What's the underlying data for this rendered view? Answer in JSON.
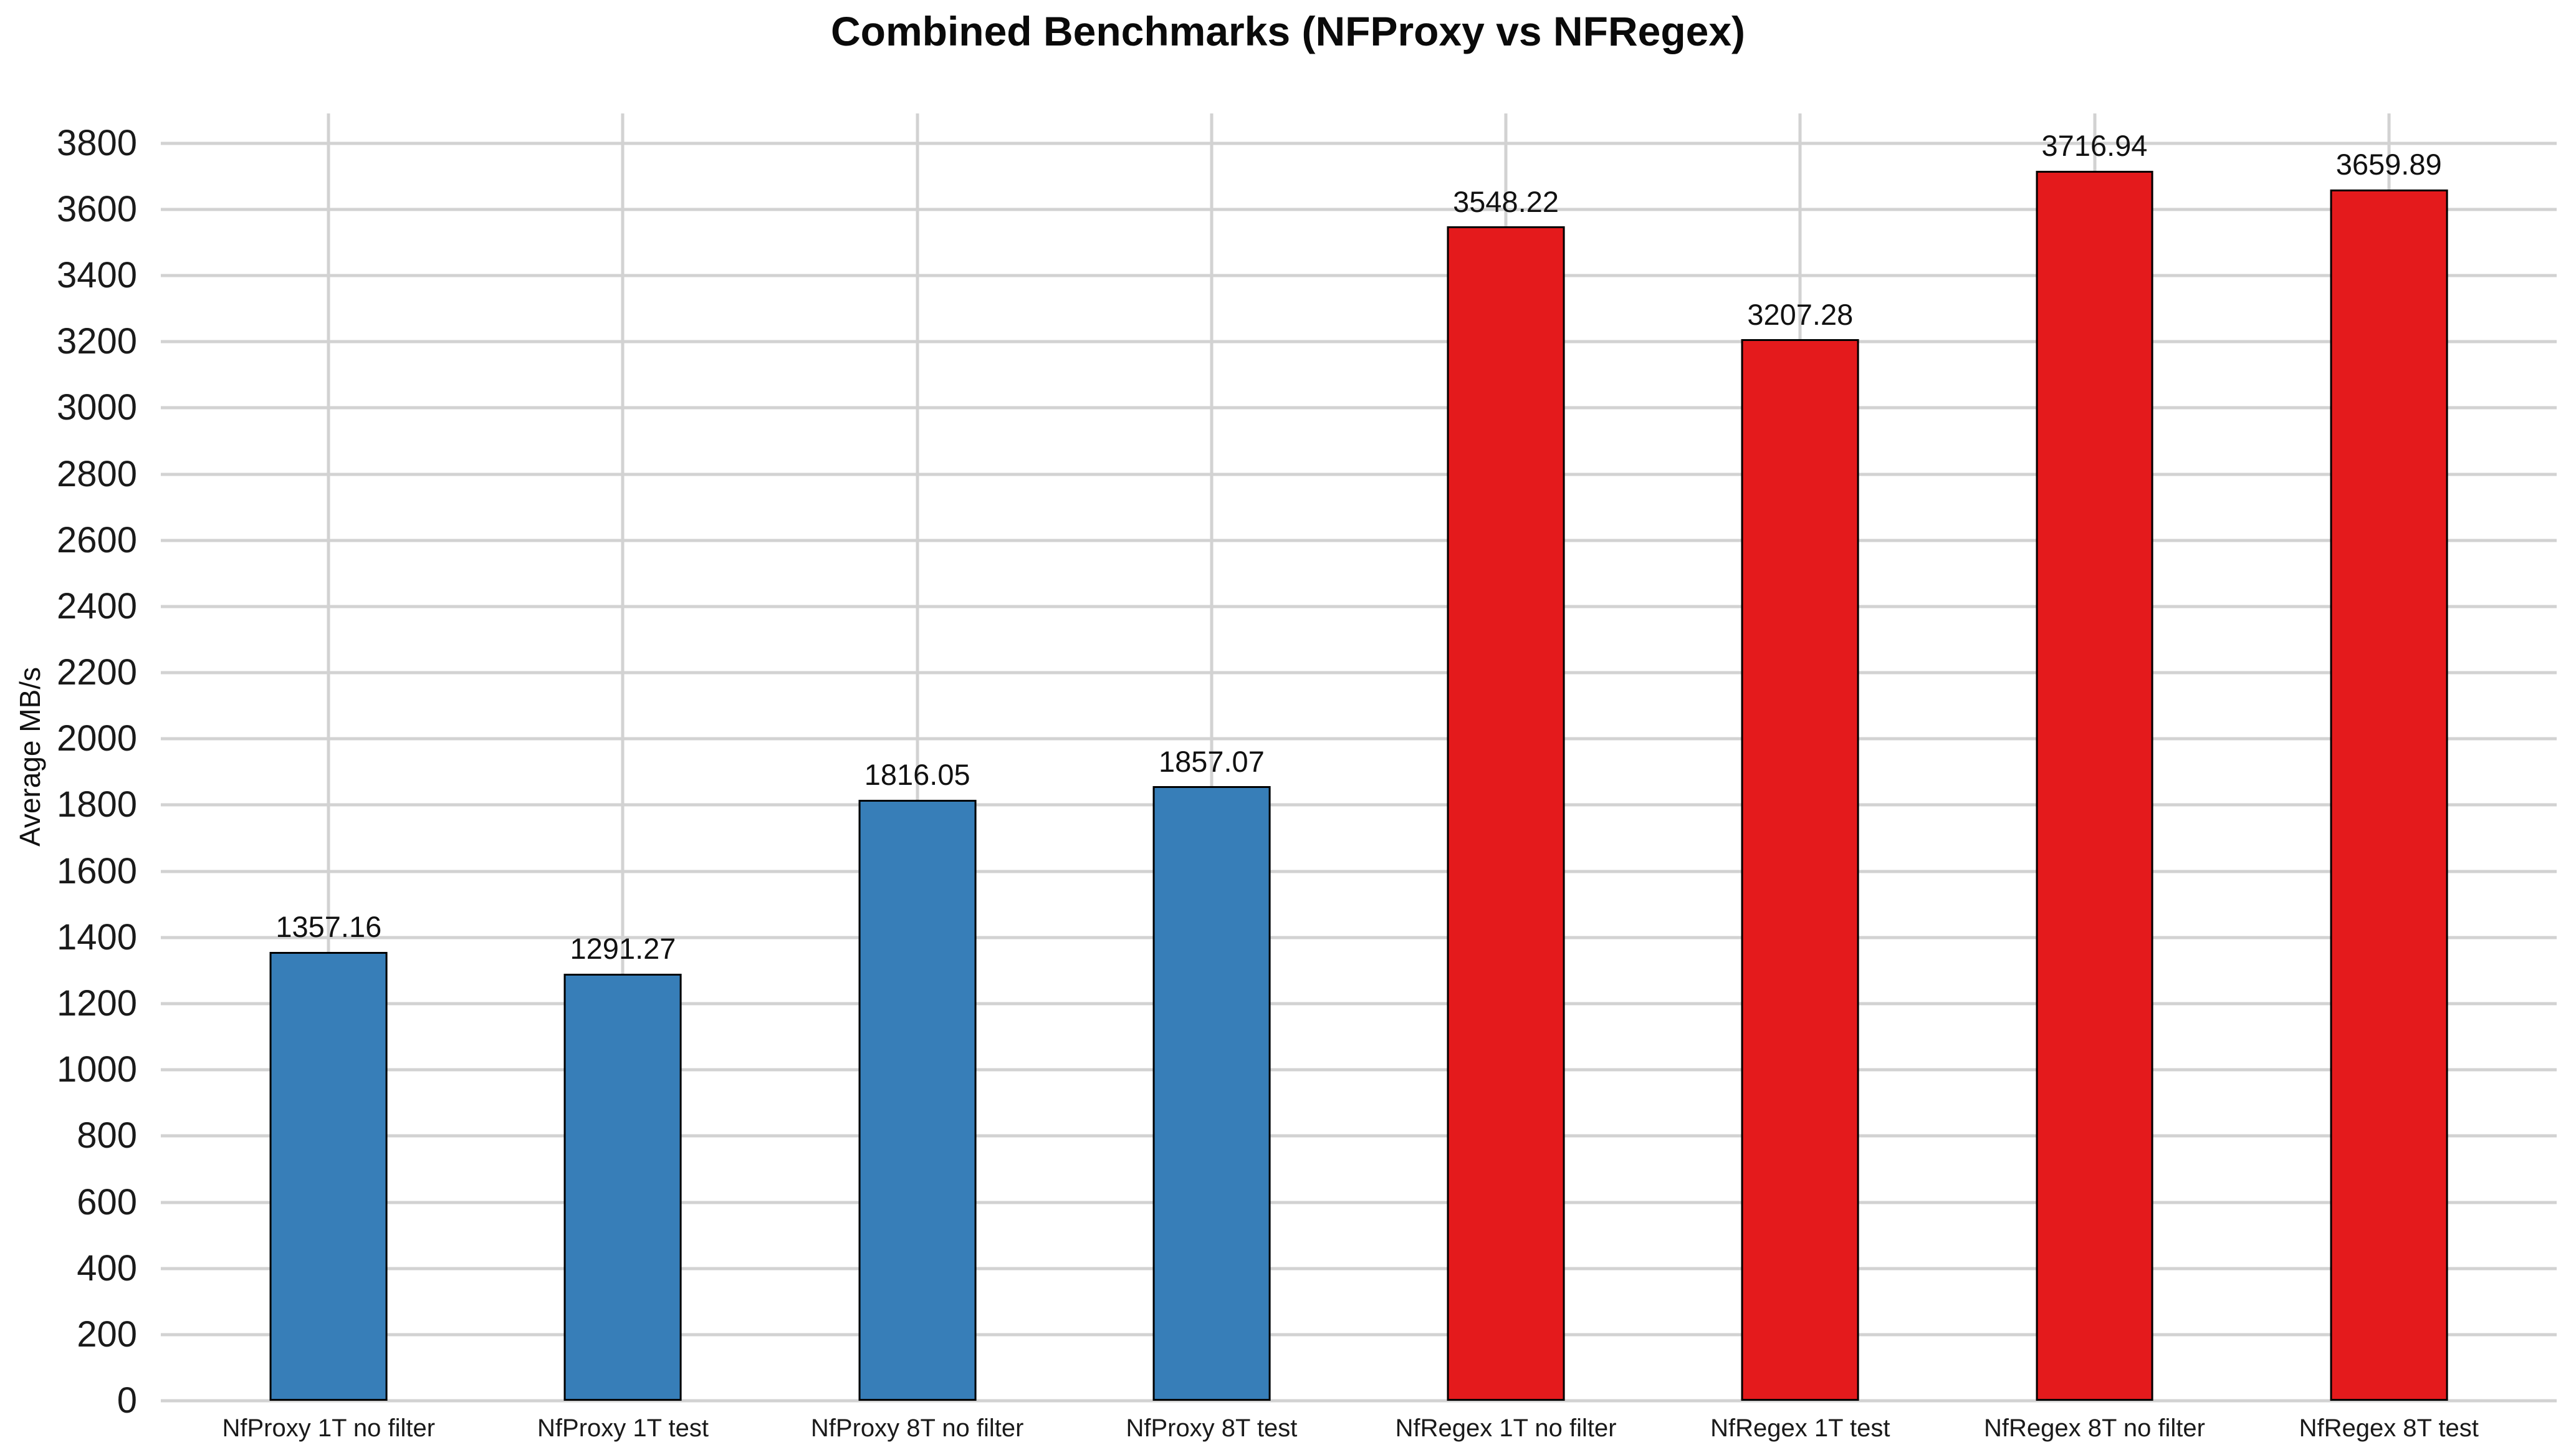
{
  "page": {
    "title": "Combined Benchmarks (NFProxy vs NFRegex)"
  },
  "chart_data": {
    "type": "bar",
    "title": "Combined Benchmarks (NFProxy vs NFRegex)",
    "xlabel": "",
    "ylabel": "Average MB/s",
    "categories": [
      "NfProxy 1T no filter",
      "NfProxy 1T test",
      "NfProxy 8T no filter",
      "NfProxy 8T test",
      "NfRegex 1T no filter",
      "NfRegex 1T test",
      "NfRegex 8T no filter",
      "NfRegex 8T test"
    ],
    "values": [
      1357.16,
      1291.27,
      1816.05,
      1857.07,
      3548.22,
      3207.28,
      3716.94,
      3659.89
    ],
    "value_labels": [
      "1357.16",
      "1291.27",
      "1816.05",
      "1857.07",
      "3548.22",
      "3207.28",
      "3716.94",
      "3659.89"
    ],
    "bar_colors": [
      "#377EB8",
      "#377EB8",
      "#377EB8",
      "#377EB8",
      "#E41A1C",
      "#E41A1C",
      "#E41A1C",
      "#E41A1C"
    ],
    "bar_edge_color": "#000000",
    "ylim": [
      0,
      3890
    ],
    "yticks": [
      0,
      200,
      400,
      600,
      800,
      1000,
      1200,
      1400,
      1600,
      1800,
      2000,
      2200,
      2400,
      2600,
      2800,
      3000,
      3200,
      3400,
      3600,
      3800
    ],
    "grid": true,
    "gridline_color": "#d2d2d2",
    "legend_position": "none"
  }
}
